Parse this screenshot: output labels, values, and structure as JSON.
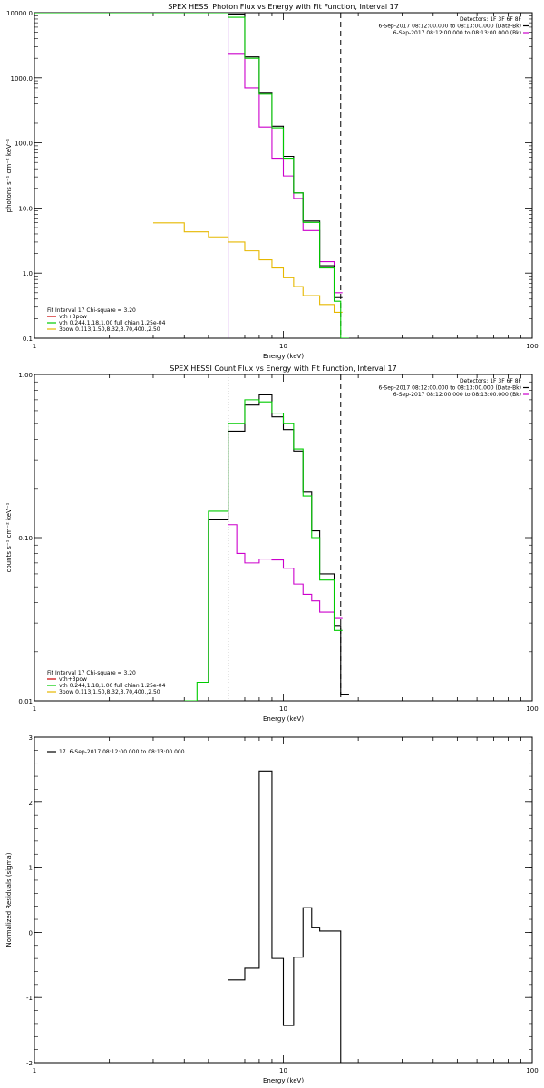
{
  "chart_data": [
    {
      "type": "line",
      "title": "SPEX HESSI Photon Flux vs Energy with Fit Function, Interval 17",
      "xlabel": "Energy (keV)",
      "ylabel": "photons s⁻¹ cm⁻² keV⁻¹",
      "xscale": "log",
      "yscale": "log",
      "xlim": [
        1,
        100
      ],
      "ylim": [
        0.1,
        10000
      ],
      "xticks": [
        {
          "v": 1,
          "label": "1"
        },
        {
          "v": 10,
          "label": "10"
        },
        {
          "v": 100,
          "label": "100"
        }
      ],
      "yticks": [
        {
          "v": 0.1,
          "label": "0.1"
        },
        {
          "v": 1,
          "label": "1.0"
        },
        {
          "v": 10,
          "label": "10.0"
        },
        {
          "v": 100,
          "label": "100.0"
        },
        {
          "v": 1000,
          "label": "1000.0"
        },
        {
          "v": 10000,
          "label": "10000.0"
        }
      ],
      "legend_right": [
        {
          "text": "Detectors: 1F 3F 6F 8F",
          "color": ""
        },
        {
          "text": "6-Sep-2017 08:12:00.000 to 08:13:00.000 (Data-Bk)",
          "color": "#000000"
        },
        {
          "text": "6-Sep-2017 08:12:00.000 to 08:13:00.000 (Bk)",
          "color": "#cc00cc"
        }
      ],
      "legend_left": [
        {
          "text": "Fit Interval 17    Chi-square = 3.20",
          "color": ""
        },
        {
          "text": "vth+3pow",
          "color": "#cc0000"
        },
        {
          "text": "vth 0.244,1.18,1.00  full chian 1.25e-04",
          "color": "#00cc00"
        },
        {
          "text": "3pow 0.113,1.50,8.32,3.70,400.,2.50",
          "color": "#e6b800"
        }
      ],
      "vlines": [
        {
          "x": 6.0,
          "style": "solid",
          "color": "#8800cc"
        },
        {
          "x": 17.0,
          "style": "dashed",
          "color": "#000000"
        }
      ],
      "series": [
        {
          "color": "#e6b800",
          "step": true,
          "x": [
            3,
            4,
            5,
            6,
            7,
            8,
            9,
            10,
            11,
            12,
            14,
            16
          ],
          "y": [
            5.9,
            4.3,
            3.6,
            3.0,
            2.2,
            1.6,
            1.2,
            0.85,
            0.62,
            0.45,
            0.33,
            0.25
          ]
        },
        {
          "color": "#cc00cc",
          "step": true,
          "x": [
            6,
            7,
            8,
            9,
            10,
            11,
            12,
            14,
            16
          ],
          "y": [
            2300,
            700,
            175,
            58,
            31,
            14,
            4.5,
            1.5,
            0.5
          ]
        },
        {
          "color": "#000000",
          "step": true,
          "x": [
            6,
            7,
            8,
            9,
            10,
            11,
            12,
            14,
            16
          ],
          "y": [
            9500,
            2100,
            580,
            180,
            62,
            17,
            6.3,
            1.3,
            0.42
          ]
        },
        {
          "color": "#00cc00",
          "step": true,
          "x": [
            1,
            6,
            7,
            8,
            9,
            10,
            11,
            12,
            14,
            16,
            17
          ],
          "y": [
            10000,
            8500,
            2000,
            560,
            170,
            58,
            17,
            6.0,
            1.2,
            0.37,
            0.1
          ]
        }
      ]
    },
    {
      "type": "line",
      "title": "SPEX HESSI Count Flux vs Energy with Fit Function, Interval 17",
      "xlabel": "Energy (keV)",
      "ylabel": "counts s⁻¹ cm⁻² keV⁻¹",
      "xscale": "log",
      "yscale": "log",
      "xlim": [
        1,
        100
      ],
      "ylim": [
        0.01,
        1.0
      ],
      "xticks": [
        {
          "v": 1,
          "label": "1"
        },
        {
          "v": 10,
          "label": "10"
        },
        {
          "v": 100,
          "label": "100"
        }
      ],
      "yticks": [
        {
          "v": 0.01,
          "label": "0.01"
        },
        {
          "v": 0.1,
          "label": "0.10"
        },
        {
          "v": 1,
          "label": "1.00"
        }
      ],
      "legend_right": [
        {
          "text": "Detectors: 1F 3F 6F 8F",
          "color": ""
        },
        {
          "text": "6-Sep-2017 08:12:00.000 to 08:13:00.000 (Data-Bk)",
          "color": "#000000"
        },
        {
          "text": "6-Sep-2017 08:12:00.000 to 08:13:00.000 (Bk)",
          "color": "#cc00cc"
        }
      ],
      "legend_left": [
        {
          "text": "Fit Interval 17    Chi-square = 3.20",
          "color": ""
        },
        {
          "text": "vth+3pow",
          "color": "#cc0000"
        },
        {
          "text": "vth 0.244,1.18,1.00  full chian 1.25e-04",
          "color": "#00cc00"
        },
        {
          "text": "3pow 0.113,1.50,8.32,3.70,400.,2.50",
          "color": "#e6b800"
        }
      ],
      "vlines": [
        {
          "x": 6.0,
          "style": "dotted",
          "color": "#000000"
        },
        {
          "x": 17.0,
          "style": "dashed",
          "color": "#000000"
        }
      ],
      "series": [
        {
          "color": "#cc00cc",
          "step": true,
          "x": [
            6,
            6.5,
            7,
            8,
            9,
            10,
            11,
            12,
            13,
            14,
            16
          ],
          "y": [
            0.12,
            0.08,
            0.07,
            0.074,
            0.073,
            0.065,
            0.052,
            0.045,
            0.041,
            0.035,
            0.032
          ]
        },
        {
          "color": "#000000",
          "step": true,
          "x": [
            4.5,
            5,
            6,
            7,
            8,
            9,
            10,
            11,
            12,
            13,
            14,
            16,
            17
          ],
          "y": [
            0.013,
            0.13,
            0.45,
            0.65,
            0.75,
            0.55,
            0.46,
            0.34,
            0.19,
            0.11,
            0.06,
            0.029,
            0.011
          ]
        },
        {
          "color": "#00cc00",
          "step": true,
          "x": [
            4,
            4.5,
            5,
            6,
            7,
            8,
            9,
            10,
            11,
            12,
            13,
            14,
            16
          ],
          "y": [
            0.01,
            0.013,
            0.145,
            0.5,
            0.7,
            0.68,
            0.58,
            0.5,
            0.35,
            0.18,
            0.1,
            0.055,
            0.027
          ]
        }
      ]
    },
    {
      "type": "line",
      "title": "",
      "xlabel": "Energy (keV)",
      "ylabel": "Normalized Residuals (sigma)",
      "xscale": "log",
      "yscale": "linear",
      "xlim": [
        1,
        100
      ],
      "ylim": [
        -2,
        3
      ],
      "xticks": [
        {
          "v": 1,
          "label": "1"
        },
        {
          "v": 10,
          "label": "10"
        },
        {
          "v": 100,
          "label": "100"
        }
      ],
      "yticks": [
        {
          "v": -2,
          "label": "-2"
        },
        {
          "v": -1,
          "label": "-1"
        },
        {
          "v": 0,
          "label": "0"
        },
        {
          "v": 1,
          "label": "1"
        },
        {
          "v": 2,
          "label": "2"
        },
        {
          "v": 3,
          "label": "3"
        }
      ],
      "legend_right": [],
      "legend_left": [],
      "legend_top": [
        {
          "text": "17.  6-Sep-2017 08:12:00.000 to 08:13:00.000",
          "color": "#000000"
        }
      ],
      "vlines": [],
      "series": [
        {
          "color": "#000000",
          "step": true,
          "x": [
            6,
            7,
            8,
            9,
            10,
            11,
            12,
            13,
            14,
            15,
            16,
            17
          ],
          "y": [
            -0.73,
            -0.55,
            2.48,
            -0.4,
            -1.43,
            -0.38,
            0.38,
            0.08,
            0.02,
            0.02,
            0.02,
            -2.0
          ]
        }
      ]
    }
  ]
}
